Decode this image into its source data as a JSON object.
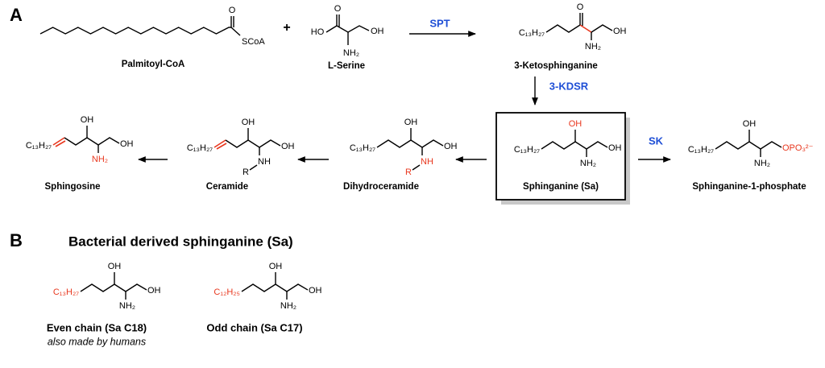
{
  "panel_a": {
    "label": "A",
    "plus": "+",
    "enzymes": {
      "spt": "SPT",
      "kdsr": "3-KDSR",
      "sk": "SK"
    },
    "compounds": [
      {
        "name": "Palmitoyl-CoA",
        "atoms": [
          "O",
          "SCoA"
        ]
      },
      {
        "name": "L-Serine",
        "atoms": [
          "HO",
          "O",
          "NH₂",
          "OH"
        ]
      },
      {
        "name": "3-Ketosphinganine",
        "atoms": [
          "C₁₃H₂₇",
          "O",
          "NH₂",
          "OH"
        ]
      },
      {
        "name": "Sphinganine (Sa)",
        "atoms": [
          "C₁₃H₂₇",
          "OH",
          "NH₂",
          "OH"
        ]
      },
      {
        "name": "Sphinganine-1-phosphate",
        "atoms": [
          "C₁₃H₂₇",
          "OH",
          "NH₂",
          "OPO₃²⁻"
        ]
      },
      {
        "name": "Dihydroceramide",
        "atoms": [
          "C₁₃H₂₇",
          "OH",
          "NH",
          "R",
          "OH"
        ]
      },
      {
        "name": "Ceramide",
        "atoms": [
          "C₁₃H₂₇",
          "OH",
          "NH",
          "R",
          "OH"
        ]
      },
      {
        "name": "Sphingosine",
        "atoms": [
          "C₁₃H₂₇",
          "OH",
          "NH₂",
          "OH"
        ]
      }
    ]
  },
  "panel_b": {
    "label": "B",
    "title": "Bacterial derived sphinganine (Sa)",
    "compounds": [
      {
        "name": "Even chain (Sa C18)",
        "note": "also made by humans",
        "atoms": [
          "C₁₃H₂₇",
          "OH",
          "NH₂",
          "OH"
        ]
      },
      {
        "name": "Odd chain (Sa C17)",
        "atoms": [
          "C₁₂H₂₅",
          "OH",
          "NH₂",
          "OH"
        ]
      }
    ]
  }
}
